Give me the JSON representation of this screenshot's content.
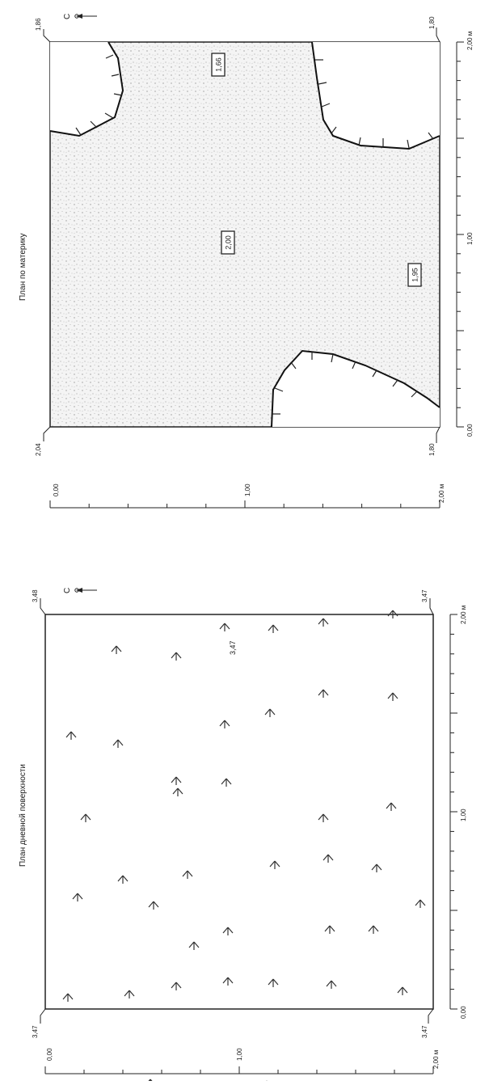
{
  "compass_label": "С",
  "plan_top": {
    "title": "План по материку",
    "corner_marks": {
      "top_left": "1,86",
      "top_right": "1,80",
      "bottom_left": "2,04",
      "bottom_right": "1,80"
    },
    "elevation_labels": [
      "1,66",
      "2,00",
      "1,95"
    ],
    "scale_x": {
      "start": "0,00",
      "mid": "1,00",
      "end": "2,00 м"
    },
    "scale_y": {
      "start": "0,00",
      "mid": "1,00",
      "end": "2,00 м"
    }
  },
  "plan_bottom": {
    "title": "План дневной поверхности",
    "corner_marks": {
      "top_left": "3,48",
      "top_right": "3,47",
      "bottom_left": "3,47",
      "bottom_right": "3,47"
    },
    "center_elevation": "3,47",
    "scale_x": {
      "start": "0,00",
      "mid": "1,00",
      "end": "2,00 м"
    },
    "scale_y": {
      "start": "0,00",
      "mid": "1,00",
      "end": "2,00 м"
    }
  }
}
